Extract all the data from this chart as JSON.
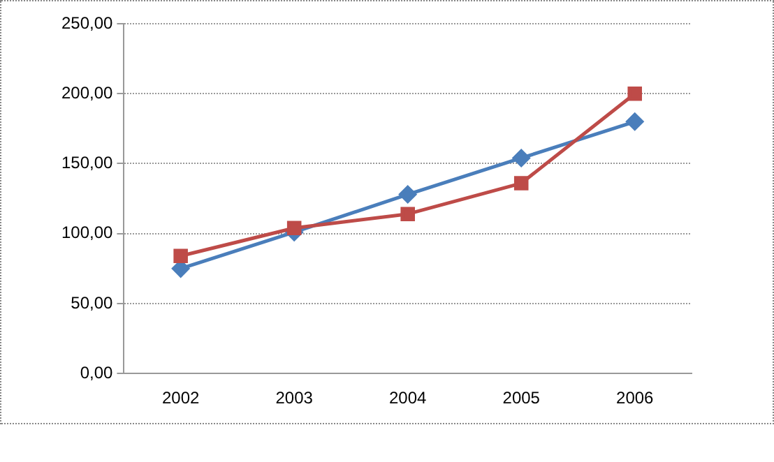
{
  "chart_data": {
    "type": "line",
    "categories": [
      "2002",
      "2003",
      "2004",
      "2005",
      "2006"
    ],
    "series": [
      {
        "color": "#4a7ebb",
        "values": [
          75,
          101,
          128,
          154,
          180
        ],
        "marker": "diamond"
      },
      {
        "color": "#be4b48",
        "values": [
          84,
          104,
          114,
          136,
          200
        ],
        "marker": "square"
      }
    ],
    "ylim": [
      0,
      250
    ],
    "yticks": [
      {
        "value": 0,
        "label": "0,00"
      },
      {
        "value": 50,
        "label": "50,00"
      },
      {
        "value": 100,
        "label": "100,00"
      },
      {
        "value": 150,
        "label": "150,00"
      },
      {
        "value": 200,
        "label": "200,00"
      },
      {
        "value": 250,
        "label": "250,00"
      }
    ],
    "grid": "y",
    "legend": false,
    "line_style": "solid"
  }
}
